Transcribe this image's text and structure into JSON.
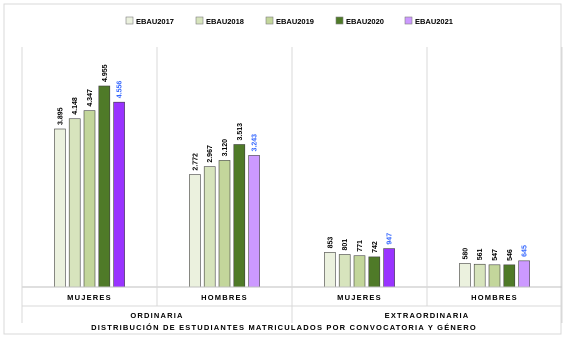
{
  "chart_data": {
    "type": "bar",
    "title": "",
    "xlabel": "DISTRIBUCIÓN DE ESTUDIANTES MATRICULADOS POR CONVOCATORIA Y GÉNERO",
    "ylabel": "",
    "ylim": [
      0,
      5500
    ],
    "grid": false,
    "legend_position": "top",
    "groups": [
      {
        "label": "ORDINARIA",
        "categories": [
          "MUJERES",
          "HOMBRES"
        ]
      },
      {
        "label": "EXTRAORDINARIA",
        "categories": [
          "MUJERES",
          "HOMBRES"
        ]
      }
    ],
    "categories": [
      "MUJERES",
      "HOMBRES",
      "MUJERES",
      "HOMBRES"
    ],
    "series": [
      {
        "name": "EBAU2017",
        "color": "#EBF1DE",
        "values": [
          3895,
          2772,
          853,
          580
        ],
        "labels": [
          "3.895",
          "2.772",
          "853",
          "580"
        ]
      },
      {
        "name": "EBAU2018",
        "color": "#D7E4BD",
        "values": [
          4148,
          2967,
          801,
          561
        ],
        "labels": [
          "4.148",
          "2.967",
          "801",
          "561"
        ]
      },
      {
        "name": "EBAU2019",
        "color": "#C3D69B",
        "values": [
          4347,
          3120,
          771,
          547
        ],
        "labels": [
          "4.347",
          "3.120",
          "771",
          "547"
        ]
      },
      {
        "name": "EBAU2020",
        "color": "#4F7A28",
        "values": [
          4955,
          3513,
          742,
          546
        ],
        "labels": [
          "4.955",
          "3.513",
          "742",
          "546"
        ]
      },
      {
        "name": "EBAU2021",
        "color": "#CC99FF",
        "values": [
          4556,
          3243,
          947,
          645
        ],
        "labels": [
          "4.556",
          "3.243",
          "947",
          "645"
        ]
      }
    ],
    "highlight_colors": {
      "mujeres_ordinaria_2021": "#9933FF",
      "mujeres_extraordinaria_2021": "#9933FF",
      "label_2021": "#3366FF",
      "label_default": "#000000"
    }
  }
}
